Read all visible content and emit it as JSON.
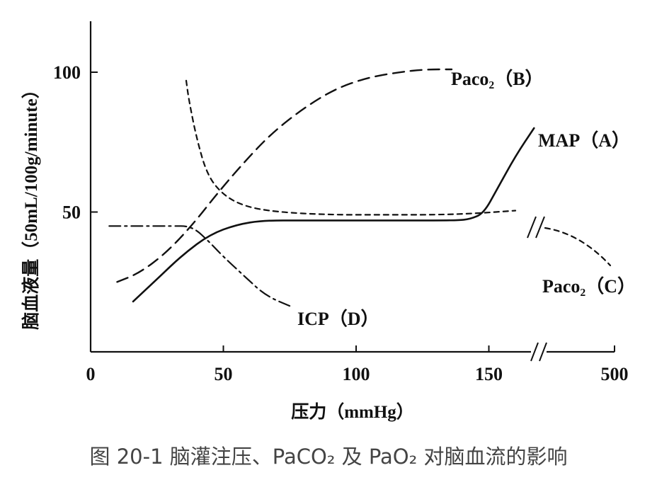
{
  "caption": "图 20-1   脑灌注压、PaCO₂ 及 PaO₂ 对脑血流的影响",
  "chart_data": {
    "type": "line",
    "title": "",
    "xlabel": "压力（mmHg）",
    "ylabel": "脑血液量（50mL/100g/minute）",
    "x_ticks": [
      "0",
      "50",
      "100",
      "150",
      "500"
    ],
    "y_ticks": [
      "50",
      "100"
    ],
    "x_axis_break": "between 150 and 500",
    "grid": false,
    "series": [
      {
        "name": "MAP（A）",
        "style": "solid",
        "x": [
          16,
          25,
          35,
          45,
          55,
          65,
          80,
          100,
          120,
          138,
          143,
          148,
          153,
          160,
          167
        ],
        "y": [
          18,
          26,
          35,
          42,
          45.5,
          47,
          47,
          47,
          47,
          47,
          47.5,
          49.5,
          58,
          70,
          80
        ]
      },
      {
        "name": "Paco₂（B）",
        "style": "dashed",
        "x": [
          10,
          18,
          28,
          38,
          48,
          58,
          68,
          80,
          92,
          104,
          116,
          126,
          136
        ],
        "y": [
          25,
          28,
          35,
          45,
          57,
          68,
          78,
          87,
          94,
          98,
          100,
          101,
          101
        ]
      },
      {
        "name": "Paco₂（C）",
        "style": "dotted",
        "x": [
          36,
          37,
          40,
          44,
          50,
          58,
          70,
          90,
          110,
          130,
          145,
          160
        ],
        "y": [
          97,
          90,
          76,
          63,
          56,
          52,
          50,
          49,
          49,
          49,
          49.5,
          50.5
        ]
      },
      {
        "name": "ICP（D）",
        "style": "dash-dot",
        "x": [
          7,
          20,
          30,
          38,
          44,
          50,
          58,
          66,
          76
        ],
        "y": [
          45,
          45,
          45,
          45,
          40,
          34,
          27,
          20,
          16
        ]
      }
    ]
  }
}
